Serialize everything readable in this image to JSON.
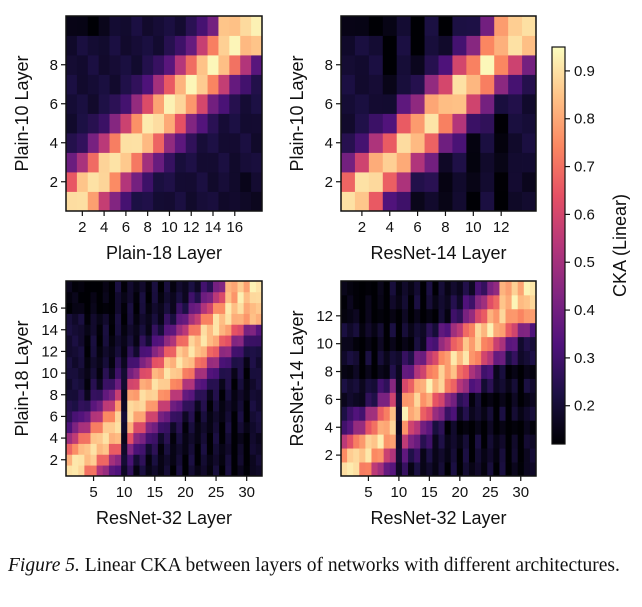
{
  "chart_data": [
    {
      "type": "heatmap",
      "xlabel": "Plain-18 Layer",
      "ylabel": "Plain-10 Layer",
      "x_range": [
        1,
        18
      ],
      "y_range": [
        1,
        10
      ],
      "x_ticks": [
        2,
        4,
        6,
        8,
        10,
        12,
        14,
        16
      ],
      "y_ticks": [
        2,
        4,
        6,
        8
      ],
      "x_ticklabels": [
        "2",
        "4",
        "6",
        "8",
        "10",
        "12",
        "14",
        "16"
      ],
      "y_ticklabels": [
        "2",
        "4",
        "6",
        "8"
      ],
      "x_arch": "plain",
      "y_arch": "plain"
    },
    {
      "type": "heatmap",
      "xlabel": "ResNet-14 Layer",
      "ylabel": "Plain-10 Layer",
      "x_range": [
        1,
        14
      ],
      "y_range": [
        1,
        10
      ],
      "x_ticks": [
        2,
        4,
        6,
        8,
        10,
        12
      ],
      "y_ticks": [
        2,
        4,
        6,
        8
      ],
      "x_ticklabels": [
        "2",
        "4",
        "6",
        "8",
        "10",
        "12"
      ],
      "y_ticklabels": [
        "2",
        "4",
        "6",
        "8"
      ],
      "x_arch": "resnet",
      "y_arch": "plain"
    },
    {
      "type": "heatmap",
      "xlabel": "ResNet-32 Layer",
      "ylabel": "Plain-18 Layer",
      "x_range": [
        1,
        32
      ],
      "y_range": [
        1,
        18
      ],
      "x_ticks": [
        5,
        10,
        15,
        20,
        25,
        30
      ],
      "y_ticks": [
        2,
        4,
        6,
        8,
        10,
        12,
        14,
        16
      ],
      "x_ticklabels": [
        "5",
        "10",
        "15",
        "20",
        "25",
        "30"
      ],
      "y_ticklabels": [
        "2",
        "4",
        "6",
        "8",
        "10",
        "12",
        "14",
        "16"
      ],
      "x_arch": "resnet",
      "y_arch": "plain"
    },
    {
      "type": "heatmap",
      "xlabel": "ResNet-32 Layer",
      "ylabel": "ResNet-14 Layer",
      "x_range": [
        1,
        32
      ],
      "y_range": [
        1,
        14
      ],
      "x_ticks": [
        5,
        10,
        15,
        20,
        25,
        30
      ],
      "y_ticks": [
        2,
        4,
        6,
        8,
        10,
        12
      ],
      "x_ticklabels": [
        "5",
        "10",
        "15",
        "20",
        "25",
        "30"
      ],
      "y_ticklabels": [
        "2",
        "4",
        "6",
        "8",
        "10",
        "12"
      ],
      "x_arch": "resnet",
      "y_arch": "resnet"
    }
  ],
  "colorbar": {
    "label": "CKA (Linear)",
    "range": [
      0.12,
      0.95
    ],
    "ticks": [
      0.2,
      0.3,
      0.4,
      0.5,
      0.6,
      0.7,
      0.8,
      0.9
    ],
    "ticklabels": [
      "0.2",
      "0.3",
      "0.4",
      "0.5",
      "0.6",
      "0.7",
      "0.8",
      "0.9"
    ],
    "colormap": "magma",
    "stops": [
      "#000004",
      "#1c1044",
      "#4f127b",
      "#812581",
      "#b5367a",
      "#e55064",
      "#fb8761",
      "#fec287",
      "#fcfdbf"
    ]
  },
  "caption": {
    "label": "Figure 5.",
    "text": " Linear CKA between layers of networks with different architectures."
  }
}
